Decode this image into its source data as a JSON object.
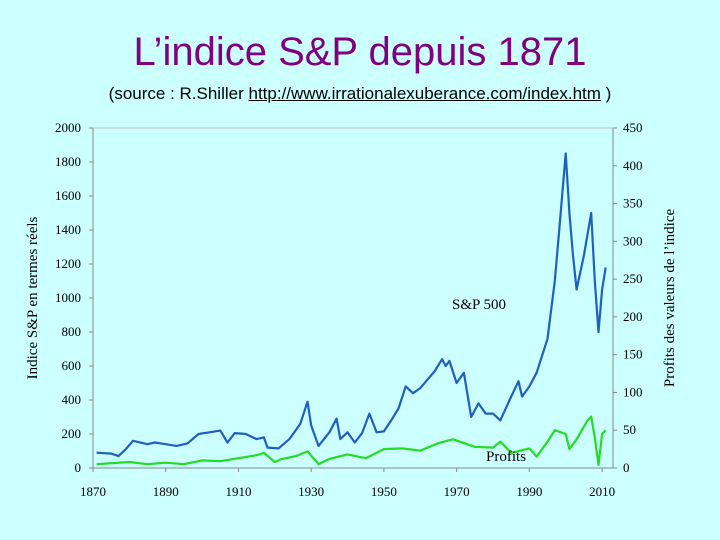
{
  "title": "L’indice S&P depuis 1871",
  "source": {
    "prefix": "(source : R.Shiller ",
    "link": "http://www.irrationalexuberance.com/index.htm",
    "suffix": " )"
  },
  "colors": {
    "background": "#ccffff",
    "title": "#800080",
    "sp500": "#1f5fbf",
    "profits": "#22dd22"
  },
  "chart_data": {
    "type": "line",
    "ylabel_left": "Indice S&P en termes réels",
    "ylabel_right": "Profits des valeurs de l’indice",
    "xlim": [
      1870,
      2013
    ],
    "ylim_left": [
      0,
      2000
    ],
    "ylim_right": [
      0,
      450
    ],
    "x_ticks": [
      1870,
      1890,
      1910,
      1930,
      1950,
      1970,
      1990,
      2010
    ],
    "y_ticks_left": [
      0,
      200,
      400,
      600,
      800,
      1000,
      1200,
      1400,
      1600,
      1800,
      2000
    ],
    "y_ticks_right": [
      0,
      50,
      100,
      150,
      200,
      250,
      300,
      350,
      400,
      450
    ],
    "grid": false,
    "series": [
      {
        "name": "S&P 500",
        "axis": "left",
        "x": [
          1871,
          1875,
          1877,
          1879,
          1881,
          1885,
          1887,
          1890,
          1893,
          1896,
          1899,
          1902,
          1905,
          1907,
          1909,
          1912,
          1915,
          1917,
          1918,
          1921,
          1924,
          1927,
          1929,
          1930,
          1932,
          1935,
          1937,
          1938,
          1940,
          1942,
          1944,
          1946,
          1948,
          1950,
          1952,
          1954,
          1956,
          1958,
          1960,
          1962,
          1964,
          1966,
          1967,
          1968,
          1970,
          1972,
          1974,
          1976,
          1978,
          1980,
          1982,
          1985,
          1987,
          1988,
          1990,
          1992,
          1995,
          1997,
          1998,
          1999,
          2000,
          2001,
          2002,
          2003,
          2005,
          2007,
          2008,
          2009,
          2010,
          2011
        ],
        "y": [
          90,
          85,
          70,
          110,
          160,
          140,
          150,
          140,
          130,
          145,
          200,
          210,
          220,
          150,
          205,
          200,
          170,
          180,
          120,
          115,
          170,
          260,
          390,
          250,
          130,
          210,
          290,
          170,
          210,
          150,
          205,
          320,
          210,
          215,
          280,
          350,
          480,
          440,
          470,
          520,
          570,
          640,
          600,
          630,
          500,
          560,
          300,
          380,
          320,
          320,
          280,
          420,
          510,
          420,
          480,
          560,
          760,
          1100,
          1350,
          1600,
          1850,
          1500,
          1250,
          1050,
          1250,
          1500,
          1100,
          800,
          1050,
          1180
        ]
      },
      {
        "name": "Profits",
        "axis": "right",
        "x": [
          1871,
          1880,
          1885,
          1890,
          1895,
          1900,
          1905,
          1910,
          1915,
          1917,
          1920,
          1922,
          1926,
          1929,
          1932,
          1935,
          1940,
          1945,
          1950,
          1955,
          1960,
          1965,
          1969,
          1975,
          1980,
          1982,
          1985,
          1990,
          1992,
          1995,
          1997,
          2000,
          2001,
          2003,
          2006,
          2007,
          2008,
          2009,
          2010,
          2011
        ],
        "y": [
          5,
          8,
          5,
          7,
          5,
          10,
          9,
          13,
          17,
          20,
          8,
          12,
          16,
          22,
          5,
          12,
          18,
          13,
          25,
          26,
          23,
          33,
          38,
          28,
          27,
          35,
          20,
          26,
          15,
          35,
          50,
          45,
          25,
          38,
          63,
          68,
          40,
          4,
          45,
          50
        ]
      }
    ],
    "annotations": [
      "S&P 500",
      "Profits"
    ]
  }
}
